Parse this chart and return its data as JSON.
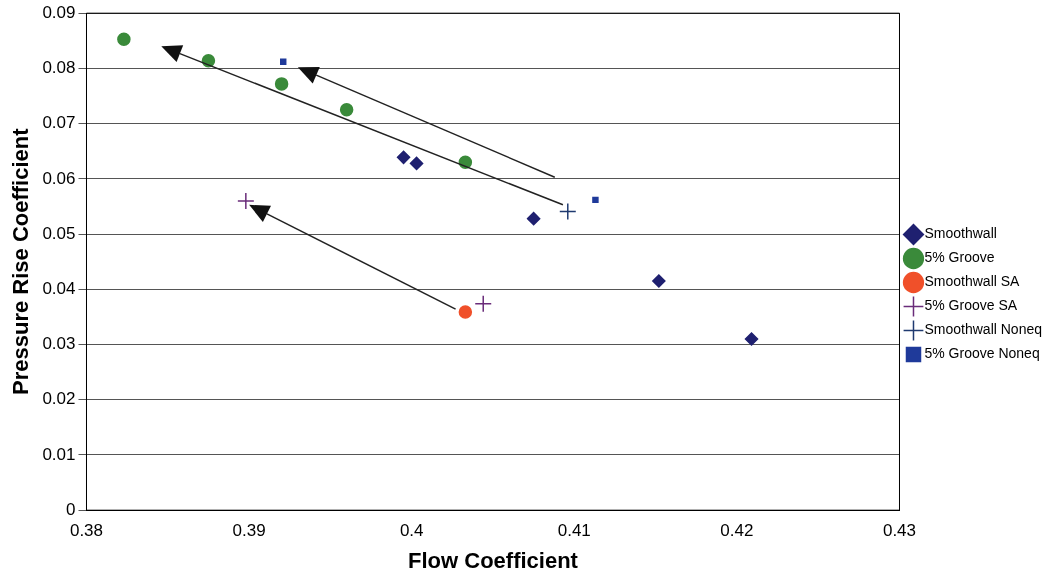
{
  "chart_data": {
    "type": "scatter",
    "xlabel": "Flow Coefficient",
    "ylabel": "Pressure Rise Coefficient",
    "xlim": [
      0.38,
      0.43
    ],
    "xticks": [
      {
        "value": 0.38,
        "label": "0.38"
      },
      {
        "value": 0.39,
        "label": "0.39"
      },
      {
        "value": 0.4,
        "label": "0.4"
      },
      {
        "value": 0.41,
        "label": "0.41"
      },
      {
        "value": 0.42,
        "label": "0.42"
      },
      {
        "value": 0.43,
        "label": "0.43"
      }
    ],
    "ylim": [
      0,
      0.09
    ],
    "yticks": [
      0,
      0.01,
      0.02,
      0.03,
      0.04,
      0.05,
      0.06,
      0.07,
      0.08,
      0.09
    ],
    "grid": "y",
    "legend": "right",
    "series": [
      {
        "name": "Smoothwall",
        "color": "#1f2070",
        "marker": "diamond",
        "x": [
          0.3995,
          0.4003,
          0.4075,
          0.4152,
          0.4209
        ],
        "values": [
          0.0639,
          0.0628,
          0.0528,
          0.0415,
          0.031
        ]
      },
      {
        "name": "5% Groove",
        "color": "#3a8a3a",
        "marker": "circle",
        "x": [
          0.3823,
          0.3875,
          0.392,
          0.396,
          0.4033
        ],
        "values": [
          0.0853,
          0.0814,
          0.0772,
          0.0725,
          0.063
        ]
      },
      {
        "name": "Smoothwall SA",
        "color": "#f0502a",
        "marker": "circle",
        "x": [
          0.4033
        ],
        "values": [
          0.0359
        ]
      },
      {
        "name": "5% Groove SA",
        "color": "#6a2c7a",
        "marker": "cross",
        "x": [
          0.3898,
          0.4044
        ],
        "values": [
          0.056,
          0.0374
        ]
      },
      {
        "name": "Smoothwall Noneq",
        "color": "#1f3a70",
        "marker": "cross",
        "x": [
          0.4096
        ],
        "values": [
          0.0541
        ]
      },
      {
        "name": "5% Groove Noneq",
        "color": "#1f3a9a",
        "marker": "square",
        "x": [
          0.3921,
          0.4113
        ],
        "values": [
          0.0812,
          0.0562
        ]
      }
    ]
  }
}
